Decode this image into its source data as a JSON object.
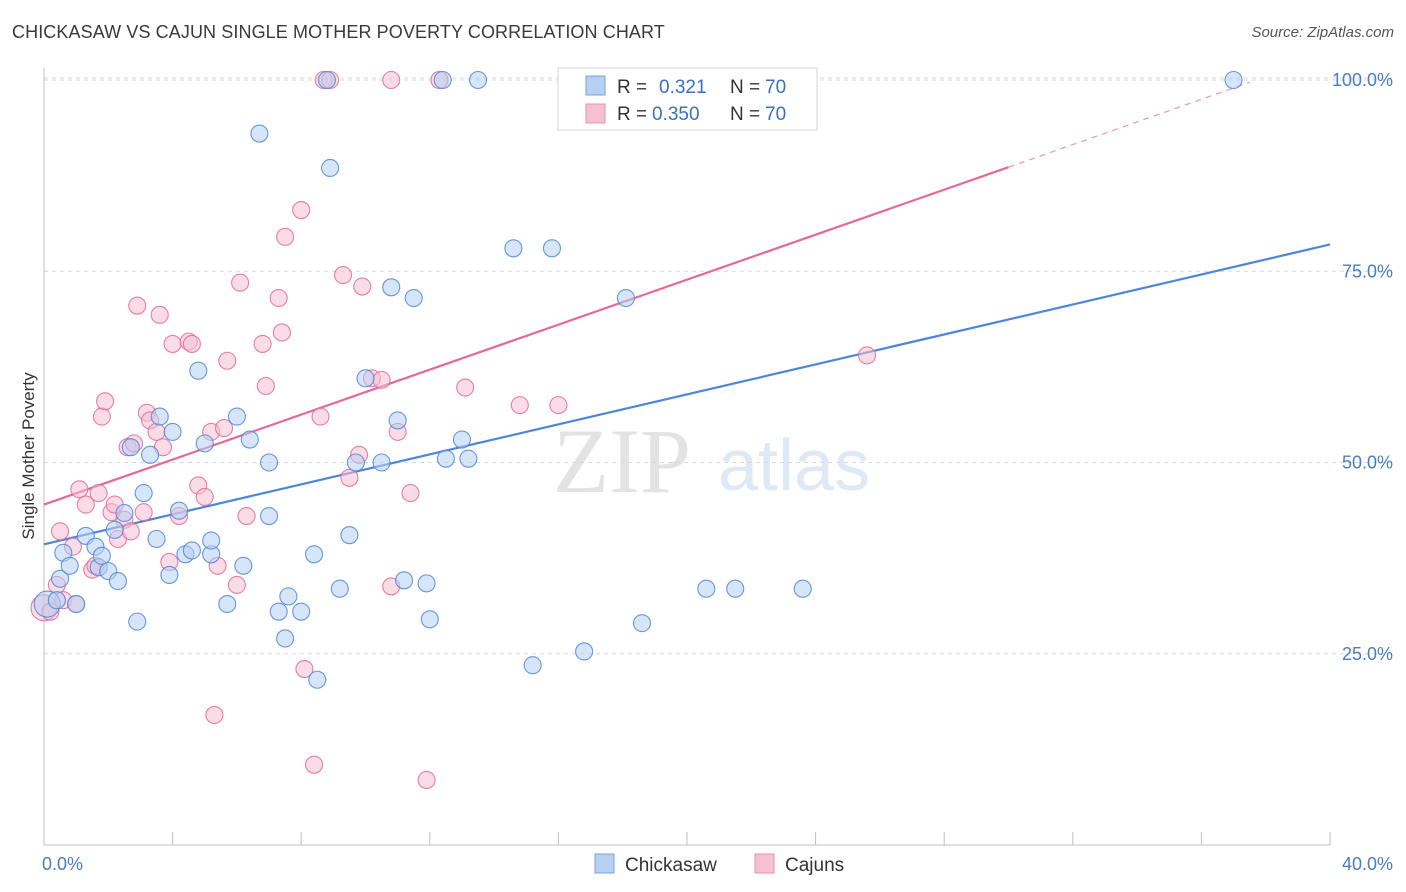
{
  "header": {
    "title": "CHICKASAW VS CAJUN SINGLE MOTHER POVERTY CORRELATION CHART",
    "source": "Source: ZipAtlas.com"
  },
  "colors": {
    "blue": "#4d86d9",
    "blue_fill": "#b7cff2",
    "pink": "#e36a98",
    "pink_fill": "#f6bfd2",
    "grid": "#d9d9d9",
    "tick": "#4a7cc4"
  },
  "chart_data": {
    "type": "scatter",
    "title": "CHICKASAW VS CAJUN SINGLE MOTHER POVERTY CORRELATION CHART",
    "xlabel": "",
    "ylabel": "Single Mother Poverty",
    "xlim": [
      0,
      40
    ],
    "ylim": [
      0,
      101
    ],
    "x_tick_labels": [
      "0.0%",
      "40.0%"
    ],
    "y_ticks": [
      25,
      50,
      75,
      100
    ],
    "y_tick_labels": [
      "25.0%",
      "50.0%",
      "75.0%",
      "100.0%"
    ],
    "watermark": {
      "part1": "ZIP",
      "part2": "atlas"
    },
    "legend": [
      {
        "name": "Chickasaw",
        "r_label": "R =",
        "r": "0.321",
        "n_label": "N =",
        "n": "70"
      },
      {
        "name": "Cajuns",
        "r_label": "R =",
        "r": "0.350",
        "n_label": "N =",
        "n": "70"
      }
    ],
    "series": [
      {
        "name": "Chickasaw",
        "color": "blue",
        "trend": {
          "x0": 0,
          "y0": 39.3,
          "x1": 40,
          "y1": 78.5
        },
        "points": [
          [
            0.1,
            31.5
          ],
          [
            0.4,
            32.0
          ],
          [
            0.5,
            34.8
          ],
          [
            0.6,
            38.2
          ],
          [
            0.8,
            36.5
          ],
          [
            1.0,
            31.5
          ],
          [
            1.3,
            40.4
          ],
          [
            1.6,
            39.0
          ],
          [
            1.7,
            36.3
          ],
          [
            1.8,
            37.8
          ],
          [
            2.0,
            35.8
          ],
          [
            2.2,
            41.2
          ],
          [
            2.3,
            34.5
          ],
          [
            2.5,
            43.4
          ],
          [
            2.7,
            52.0
          ],
          [
            2.9,
            29.2
          ],
          [
            3.1,
            46.0
          ],
          [
            3.3,
            51.0
          ],
          [
            3.5,
            40.0
          ],
          [
            3.6,
            56.0
          ],
          [
            3.9,
            35.3
          ],
          [
            4.0,
            54.0
          ],
          [
            4.2,
            43.7
          ],
          [
            4.4,
            38.0
          ],
          [
            4.6,
            38.5
          ],
          [
            4.8,
            62.0
          ],
          [
            5.0,
            52.5
          ],
          [
            5.2,
            38.0
          ],
          [
            5.2,
            39.8
          ],
          [
            5.7,
            31.5
          ],
          [
            6.0,
            56.0
          ],
          [
            6.2,
            36.5
          ],
          [
            6.4,
            53.0
          ],
          [
            6.7,
            93.0
          ],
          [
            7.0,
            43.0
          ],
          [
            7.0,
            50.0
          ],
          [
            7.3,
            30.5
          ],
          [
            7.5,
            27.0
          ],
          [
            7.6,
            32.5
          ],
          [
            8.0,
            30.5
          ],
          [
            8.4,
            38.0
          ],
          [
            8.5,
            21.6
          ],
          [
            8.8,
            100.0
          ],
          [
            8.9,
            88.5
          ],
          [
            9.2,
            33.5
          ],
          [
            9.5,
            40.5
          ],
          [
            9.7,
            50.0
          ],
          [
            10.0,
            61.0
          ],
          [
            10.5,
            50.0
          ],
          [
            10.8,
            72.9
          ],
          [
            11.0,
            55.5
          ],
          [
            11.2,
            34.6
          ],
          [
            11.5,
            71.5
          ],
          [
            11.9,
            34.2
          ],
          [
            12.0,
            29.5
          ],
          [
            12.4,
            100.0
          ],
          [
            12.5,
            50.5
          ],
          [
            13.0,
            53.0
          ],
          [
            13.2,
            50.5
          ],
          [
            13.5,
            100.0
          ],
          [
            14.6,
            78.0
          ],
          [
            15.2,
            23.5
          ],
          [
            15.8,
            78.0
          ],
          [
            16.8,
            25.3
          ],
          [
            18.1,
            71.5
          ],
          [
            18.6,
            29.0
          ],
          [
            20.6,
            33.5
          ],
          [
            21.5,
            33.5
          ],
          [
            23.6,
            33.5
          ],
          [
            37.0,
            100.0
          ]
        ]
      },
      {
        "name": "Cajuns",
        "color": "pink",
        "trend": {
          "x0": 0,
          "y0": 44.5,
          "x1": 30,
          "y1": 88.6,
          "dash_x1": 37.5,
          "dash_y1": 99.7
        },
        "points": [
          [
            0.0,
            31.0
          ],
          [
            0.2,
            30.5
          ],
          [
            0.4,
            34.0
          ],
          [
            0.6,
            32.0
          ],
          [
            0.5,
            41.0
          ],
          [
            0.9,
            39.0
          ],
          [
            1.0,
            31.5
          ],
          [
            1.1,
            46.5
          ],
          [
            1.3,
            44.5
          ],
          [
            1.5,
            36.0
          ],
          [
            1.6,
            36.5
          ],
          [
            1.7,
            46.0
          ],
          [
            1.8,
            56.0
          ],
          [
            1.9,
            58.0
          ],
          [
            2.1,
            43.5
          ],
          [
            2.2,
            44.5
          ],
          [
            2.3,
            40.0
          ],
          [
            2.5,
            42.5
          ],
          [
            2.6,
            52.0
          ],
          [
            2.7,
            41.0
          ],
          [
            2.8,
            52.5
          ],
          [
            2.9,
            70.5
          ],
          [
            3.1,
            43.5
          ],
          [
            3.2,
            56.5
          ],
          [
            3.3,
            55.5
          ],
          [
            3.5,
            54.0
          ],
          [
            3.6,
            69.3
          ],
          [
            3.7,
            52.0
          ],
          [
            3.9,
            37.0
          ],
          [
            4.0,
            65.5
          ],
          [
            4.2,
            43.0
          ],
          [
            4.5,
            65.8
          ],
          [
            4.6,
            65.5
          ],
          [
            4.8,
            47.0
          ],
          [
            5.0,
            45.5
          ],
          [
            5.2,
            54.0
          ],
          [
            5.3,
            17.0
          ],
          [
            5.4,
            36.5
          ],
          [
            5.6,
            54.5
          ],
          [
            5.7,
            63.3
          ],
          [
            6.0,
            34.0
          ],
          [
            6.1,
            73.5
          ],
          [
            6.3,
            43.0
          ],
          [
            6.8,
            65.5
          ],
          [
            6.9,
            60.0
          ],
          [
            7.3,
            71.5
          ],
          [
            7.4,
            67.0
          ],
          [
            7.5,
            79.5
          ],
          [
            8.0,
            83.0
          ],
          [
            8.1,
            23.0
          ],
          [
            8.4,
            10.5
          ],
          [
            8.6,
            56.0
          ],
          [
            8.7,
            100.0
          ],
          [
            8.9,
            100.0
          ],
          [
            9.3,
            74.5
          ],
          [
            9.5,
            48.0
          ],
          [
            9.8,
            51.0
          ],
          [
            9.9,
            73.0
          ],
          [
            10.2,
            61.0
          ],
          [
            10.5,
            60.8
          ],
          [
            10.8,
            33.8
          ],
          [
            11.0,
            54.0
          ],
          [
            11.9,
            8.5
          ],
          [
            12.3,
            100.0
          ],
          [
            13.1,
            59.8
          ],
          [
            14.8,
            57.5
          ],
          [
            16.0,
            57.5
          ],
          [
            10.8,
            100.0
          ],
          [
            25.6,
            64.0
          ],
          [
            11.4,
            46.0
          ]
        ]
      }
    ]
  }
}
